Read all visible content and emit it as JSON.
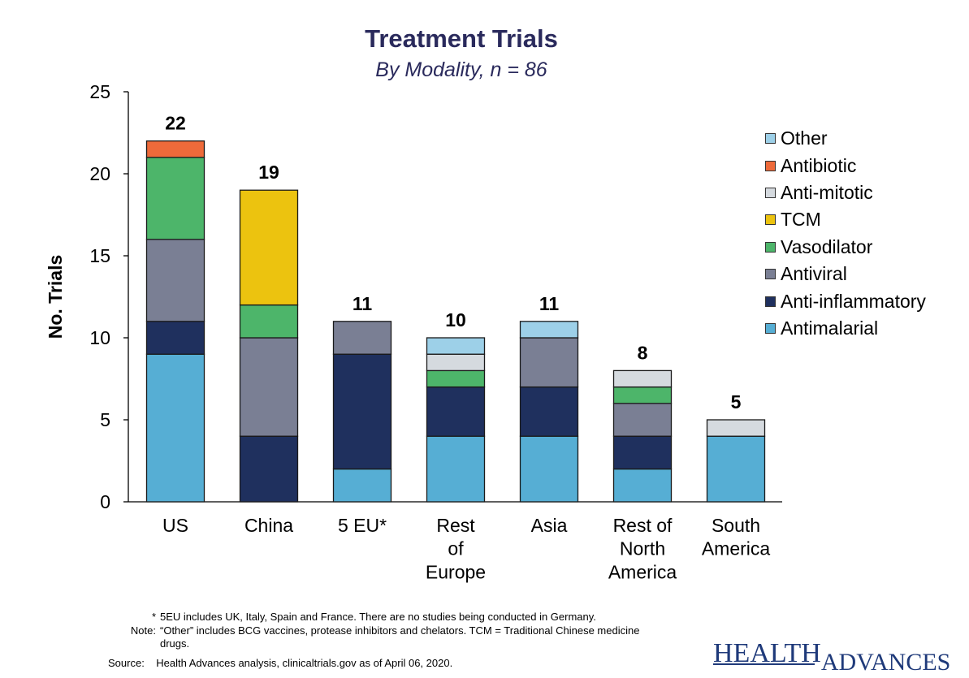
{
  "title": "Treatment Trials",
  "subtitle": "By Modality, n = 86",
  "chart_data": {
    "type": "bar",
    "stacked": true,
    "ylabel": "No. Trials",
    "ylim": [
      0,
      25
    ],
    "yticks": [
      0,
      5,
      10,
      15,
      20,
      25
    ],
    "grid": false,
    "legend_position": "right",
    "categories": [
      [
        "US"
      ],
      [
        "China"
      ],
      [
        "5 EU*"
      ],
      [
        "Rest",
        "of",
        "Europe"
      ],
      [
        "Asia"
      ],
      [
        "Rest of",
        "North",
        "America"
      ],
      [
        "South",
        "America"
      ]
    ],
    "totals": [
      22,
      19,
      11,
      10,
      11,
      8,
      5
    ],
    "series": [
      {
        "name": "Antimalarial",
        "color": "#56aed4",
        "values": [
          9,
          0,
          2,
          4,
          4,
          2,
          4
        ]
      },
      {
        "name": "Anti-inflammatory",
        "color": "#1f305e",
        "values": [
          2,
          4,
          7,
          3,
          3,
          2,
          0
        ]
      },
      {
        "name": "Antiviral",
        "color": "#7a7f94",
        "values": [
          5,
          6,
          2,
          0,
          3,
          2,
          0
        ]
      },
      {
        "name": "Vasodilator",
        "color": "#4db56a",
        "values": [
          5,
          2,
          0,
          1,
          0,
          1,
          0
        ]
      },
      {
        "name": "TCM",
        "color": "#ecc30f",
        "values": [
          0,
          7,
          0,
          0,
          0,
          0,
          0
        ]
      },
      {
        "name": "Anti-mitotic",
        "color": "#d5dadf",
        "values": [
          0,
          0,
          0,
          1,
          0,
          1,
          1
        ]
      },
      {
        "name": "Antibiotic",
        "color": "#ee6a3a",
        "values": [
          1,
          0,
          0,
          0,
          0,
          0,
          0
        ]
      },
      {
        "name": "Other",
        "color": "#9dd0e8",
        "values": [
          0,
          0,
          0,
          1,
          1,
          0,
          0
        ]
      }
    ]
  },
  "legend_order": [
    "Other",
    "Antibiotic",
    "Anti-mitotic",
    "TCM",
    "Vasodilator",
    "Antiviral",
    "Anti-inflammatory",
    "Antimalarial"
  ],
  "footnotes": {
    "star_key": "*",
    "star_text": "5EU includes UK, Italy, Spain and France. There are no studies being conducted in Germany.",
    "note_key": "Note:",
    "note_text": "“Other” includes BCG vaccines, protease inhibitors and chelators. TCM = Traditional Chinese medicine drugs.",
    "source_key": "Source:",
    "source_text": "Health Advances analysis, clinicaltrials.gov as of April 06, 2020."
  },
  "logo": {
    "part1": "HEALTH",
    "part2": "ADVANCES"
  }
}
